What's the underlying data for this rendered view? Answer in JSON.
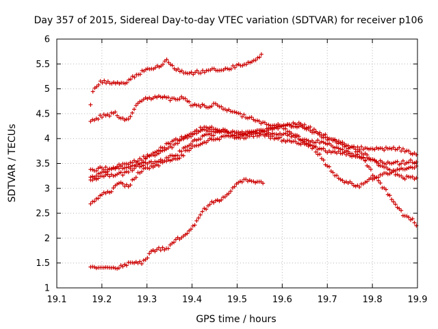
{
  "chart_data": {
    "type": "scatter",
    "title": "Day 357 of 2015, Sidereal Day-to-day VTEC variation (SDTVAR) for receiver p106",
    "xlabel": "GPS time / hours",
    "ylabel": "SDTVAR / TECUs",
    "xlim": [
      19.1,
      19.9
    ],
    "ylim": [
      1,
      6
    ],
    "xticks": [
      "19.1",
      "19.2",
      "19.3",
      "19.4",
      "19.5",
      "19.6",
      "19.7",
      "19.8",
      "19.9"
    ],
    "yticks": [
      "1",
      "1.5",
      "2",
      "2.5",
      "3",
      "3.5",
      "4",
      "4.5",
      "5",
      "5.5",
      "6"
    ],
    "grid": true,
    "marker": "+",
    "color": "#cc0000",
    "series": [
      {
        "name": "s1",
        "keypoints": [
          [
            19.175,
            4.68
          ]
        ]
      },
      {
        "name": "s2",
        "keypoints": [
          [
            19.18,
            4.98
          ],
          [
            19.2,
            5.15
          ],
          [
            19.23,
            5.1
          ],
          [
            19.25,
            5.1
          ],
          [
            19.28,
            5.3
          ],
          [
            19.3,
            5.4
          ],
          [
            19.33,
            5.45
          ],
          [
            19.345,
            5.58
          ],
          [
            19.36,
            5.42
          ],
          [
            19.38,
            5.35
          ],
          [
            19.4,
            5.32
          ],
          [
            19.45,
            5.38
          ],
          [
            19.5,
            5.45
          ],
          [
            19.53,
            5.55
          ],
          [
            19.555,
            5.68
          ]
        ]
      },
      {
        "name": "s3",
        "keypoints": [
          [
            19.175,
            4.35
          ],
          [
            19.2,
            4.45
          ],
          [
            19.23,
            4.5
          ],
          [
            19.24,
            4.38
          ],
          [
            19.26,
            4.4
          ],
          [
            19.28,
            4.7
          ],
          [
            19.3,
            4.8
          ],
          [
            19.32,
            4.85
          ],
          [
            19.35,
            4.8
          ],
          [
            19.38,
            4.82
          ],
          [
            19.4,
            4.68
          ],
          [
            19.43,
            4.65
          ],
          [
            19.45,
            4.68
          ],
          [
            19.47,
            4.6
          ],
          [
            19.5,
            4.5
          ],
          [
            19.53,
            4.42
          ],
          [
            19.55,
            4.32
          ],
          [
            19.6,
            4.25
          ],
          [
            19.63,
            4.32
          ],
          [
            19.66,
            4.18
          ],
          [
            19.7,
            4.0
          ],
          [
            19.75,
            3.82
          ],
          [
            19.8,
            3.8
          ],
          [
            19.85,
            3.8
          ],
          [
            19.88,
            3.75
          ],
          [
            19.9,
            3.68
          ]
        ]
      },
      {
        "name": "s4",
        "keypoints": [
          [
            19.175,
            3.35
          ],
          [
            19.2,
            3.4
          ],
          [
            19.25,
            3.42
          ],
          [
            19.28,
            3.5
          ],
          [
            19.3,
            3.6
          ],
          [
            19.33,
            3.72
          ],
          [
            19.37,
            3.92
          ],
          [
            19.4,
            4.08
          ],
          [
            19.42,
            4.15
          ],
          [
            19.45,
            4.18
          ],
          [
            19.5,
            4.12
          ],
          [
            19.55,
            4.12
          ],
          [
            19.6,
            4.1
          ],
          [
            19.65,
            3.98
          ],
          [
            19.7,
            3.9
          ],
          [
            19.75,
            3.7
          ],
          [
            19.8,
            3.55
          ],
          [
            19.85,
            3.5
          ],
          [
            19.9,
            3.55
          ]
        ]
      },
      {
        "name": "s5",
        "keypoints": [
          [
            19.175,
            3.2
          ],
          [
            19.2,
            3.3
          ],
          [
            19.25,
            3.5
          ],
          [
            19.28,
            3.55
          ],
          [
            19.3,
            3.65
          ],
          [
            19.33,
            3.8
          ],
          [
            19.37,
            4.0
          ],
          [
            19.4,
            4.1
          ],
          [
            19.42,
            4.2
          ],
          [
            19.45,
            4.22
          ],
          [
            19.5,
            4.08
          ],
          [
            19.55,
            4.15
          ],
          [
            19.6,
            4.28
          ],
          [
            19.65,
            4.25
          ],
          [
            19.7,
            4.05
          ],
          [
            19.75,
            3.82
          ],
          [
            19.78,
            3.7
          ],
          [
            19.8,
            3.55
          ],
          [
            19.83,
            3.4
          ],
          [
            19.87,
            3.22
          ],
          [
            19.9,
            3.2
          ]
        ]
      },
      {
        "name": "s6",
        "keypoints": [
          [
            19.175,
            3.15
          ],
          [
            19.2,
            3.25
          ],
          [
            19.25,
            3.3
          ],
          [
            19.28,
            3.45
          ],
          [
            19.3,
            3.5
          ],
          [
            19.33,
            3.55
          ],
          [
            19.37,
            3.7
          ],
          [
            19.4,
            3.92
          ],
          [
            19.43,
            4.05
          ],
          [
            19.47,
            4.15
          ],
          [
            19.5,
            4.02
          ],
          [
            19.55,
            4.08
          ],
          [
            19.6,
            3.98
          ],
          [
            19.63,
            3.92
          ],
          [
            19.65,
            3.9
          ],
          [
            19.67,
            3.82
          ],
          [
            19.7,
            3.45
          ],
          [
            19.73,
            3.15
          ],
          [
            19.75,
            3.1
          ],
          [
            19.77,
            3.05
          ],
          [
            19.8,
            3.2
          ],
          [
            19.83,
            3.3
          ],
          [
            19.85,
            3.35
          ],
          [
            19.87,
            3.4
          ],
          [
            19.9,
            3.45
          ]
        ]
      },
      {
        "name": "s7",
        "keypoints": [
          [
            19.175,
            2.7
          ],
          [
            19.2,
            2.88
          ],
          [
            19.22,
            2.95
          ],
          [
            19.24,
            3.1
          ],
          [
            19.26,
            3.05
          ],
          [
            19.28,
            3.3
          ],
          [
            19.3,
            3.4
          ],
          [
            19.33,
            3.5
          ],
          [
            19.37,
            3.6
          ],
          [
            19.4,
            3.85
          ],
          [
            19.45,
            4.0
          ],
          [
            19.5,
            4.05
          ],
          [
            19.55,
            4.15
          ],
          [
            19.6,
            4.22
          ],
          [
            19.65,
            3.95
          ],
          [
            19.68,
            3.8
          ],
          [
            19.7,
            3.75
          ],
          [
            19.75,
            3.68
          ],
          [
            19.78,
            3.6
          ],
          [
            19.8,
            3.3
          ],
          [
            19.83,
            2.95
          ],
          [
            19.85,
            2.7
          ],
          [
            19.87,
            2.45
          ],
          [
            19.89,
            2.35
          ],
          [
            19.9,
            2.2
          ]
        ]
      },
      {
        "name": "s8",
        "keypoints": [
          [
            19.175,
            1.42
          ],
          [
            19.2,
            1.38
          ],
          [
            19.23,
            1.4
          ],
          [
            19.25,
            1.45
          ],
          [
            19.27,
            1.52
          ],
          [
            19.29,
            1.5
          ],
          [
            19.3,
            1.6
          ],
          [
            19.31,
            1.75
          ],
          [
            19.33,
            1.78
          ],
          [
            19.35,
            1.82
          ],
          [
            19.36,
            1.95
          ],
          [
            19.38,
            2.05
          ],
          [
            19.4,
            2.2
          ],
          [
            19.42,
            2.5
          ],
          [
            19.44,
            2.7
          ],
          [
            19.46,
            2.75
          ],
          [
            19.48,
            2.9
          ],
          [
            19.5,
            3.1
          ],
          [
            19.52,
            3.18
          ],
          [
            19.54,
            3.12
          ],
          [
            19.56,
            3.12
          ]
        ]
      }
    ]
  }
}
